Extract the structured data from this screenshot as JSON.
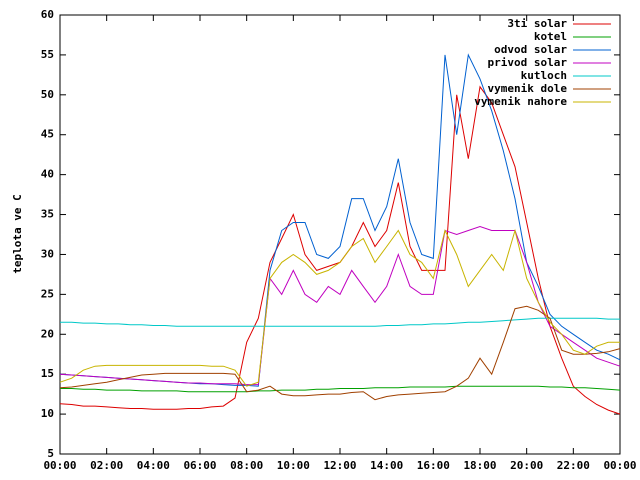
{
  "chart_data": {
    "type": "line",
    "ylabel": "teplota ve C",
    "x": [
      0,
      0.5,
      1,
      1.5,
      2,
      2.5,
      3,
      3.5,
      4,
      4.5,
      5,
      5.5,
      6,
      6.5,
      7,
      7.5,
      8,
      8.5,
      9,
      9.5,
      10,
      10.5,
      11,
      11.5,
      12,
      12.5,
      13,
      13.5,
      14,
      14.5,
      15,
      15.5,
      16,
      16.5,
      17,
      17.5,
      18,
      18.5,
      19,
      19.5,
      20,
      20.5,
      21,
      21.5,
      22,
      22.5,
      23,
      23.5,
      24
    ],
    "xlim": [
      0,
      24
    ],
    "xticks": [
      {
        "value": 0,
        "label": "00:00"
      },
      {
        "value": 2,
        "label": "02:00"
      },
      {
        "value": 4,
        "label": "04:00"
      },
      {
        "value": 6,
        "label": "06:00"
      },
      {
        "value": 8,
        "label": "08:00"
      },
      {
        "value": 10,
        "label": "10:00"
      },
      {
        "value": 12,
        "label": "12:00"
      },
      {
        "value": 14,
        "label": "14:00"
      },
      {
        "value": 16,
        "label": "16:00"
      },
      {
        "value": 18,
        "label": "18:00"
      },
      {
        "value": 20,
        "label": "20:00"
      },
      {
        "value": 22,
        "label": "22:00"
      },
      {
        "value": 24,
        "label": "00:00"
      }
    ],
    "ylim": [
      5,
      60
    ],
    "yticks": [
      5,
      10,
      15,
      20,
      25,
      30,
      35,
      40,
      45,
      50,
      55,
      60
    ],
    "series": [
      {
        "name": "3ti solar",
        "color": "#dd0000",
        "values": [
          11.3,
          11.2,
          11.0,
          11.0,
          10.9,
          10.8,
          10.7,
          10.7,
          10.6,
          10.6,
          10.6,
          10.7,
          10.7,
          10.9,
          11.0,
          12,
          19,
          22,
          29,
          32,
          35,
          30,
          28,
          28.5,
          29,
          31,
          34,
          31,
          33,
          39,
          31,
          28,
          28,
          28,
          50,
          42,
          51,
          49,
          45,
          41,
          34,
          27,
          21,
          17,
          13.5,
          12.2,
          11.2,
          10.5,
          10
        ]
      },
      {
        "name": "kotel",
        "color": "#00a000",
        "values": [
          13.2,
          13.2,
          13.1,
          13.1,
          13.0,
          13.0,
          13.0,
          12.9,
          12.9,
          12.9,
          12.9,
          12.8,
          12.8,
          12.8,
          12.8,
          12.8,
          12.8,
          12.9,
          12.9,
          13.0,
          13.0,
          13.0,
          13.1,
          13.1,
          13.2,
          13.2,
          13.2,
          13.3,
          13.3,
          13.3,
          13.4,
          13.4,
          13.4,
          13.4,
          13.5,
          13.5,
          13.5,
          13.5,
          13.5,
          13.5,
          13.5,
          13.5,
          13.4,
          13.4,
          13.3,
          13.3,
          13.2,
          13.1,
          13.0
        ]
      },
      {
        "name": "odvod solar",
        "color": "#0060d0",
        "values": [
          15.0,
          14.9,
          14.8,
          14.7,
          14.6,
          14.5,
          14.4,
          14.3,
          14.2,
          14.1,
          14.0,
          13.9,
          13.8,
          13.8,
          13.7,
          13.6,
          13.6,
          13.5,
          28,
          33,
          34,
          34,
          30,
          29.5,
          31,
          37,
          37,
          33,
          36,
          42,
          34,
          30,
          29.5,
          55,
          45,
          55,
          52,
          48,
          43,
          37,
          29,
          26,
          22.5,
          21,
          20,
          19,
          18,
          17.5,
          16.8
        ]
      },
      {
        "name": "privod solar",
        "color": "#c000c0",
        "values": [
          15.0,
          14.9,
          14.8,
          14.7,
          14.6,
          14.5,
          14.4,
          14.3,
          14.2,
          14.1,
          14.0,
          13.9,
          13.9,
          13.8,
          13.8,
          13.8,
          13.7,
          13.7,
          27,
          25,
          28,
          25,
          24,
          26,
          25,
          28,
          26,
          24,
          26,
          30,
          26,
          25,
          25,
          33,
          32.5,
          33,
          33.5,
          33,
          33,
          33,
          29,
          24,
          21,
          20,
          19,
          18,
          17,
          16.5,
          16
        ]
      },
      {
        "name": "kutloch",
        "color": "#00c8c8",
        "values": [
          21.5,
          21.5,
          21.4,
          21.4,
          21.3,
          21.3,
          21.2,
          21.2,
          21.1,
          21.1,
          21.0,
          21.0,
          21.0,
          21.0,
          21.0,
          21.0,
          21.0,
          21.0,
          21.0,
          21.0,
          21.0,
          21.0,
          21.0,
          21.0,
          21.0,
          21.0,
          21.0,
          21.0,
          21.1,
          21.1,
          21.2,
          21.2,
          21.3,
          21.3,
          21.4,
          21.5,
          21.5,
          21.6,
          21.7,
          21.8,
          21.9,
          22.0,
          22.0,
          22.0,
          22.0,
          22.0,
          22.0,
          21.9,
          21.9
        ]
      },
      {
        "name": "vymenik dole",
        "color": "#a04000",
        "values": [
          13.3,
          13.4,
          13.6,
          13.8,
          14.0,
          14.3,
          14.6,
          14.9,
          15.0,
          15.1,
          15.1,
          15.1,
          15.1,
          15.1,
          15.1,
          15.0,
          12.8,
          13,
          13.5,
          12.5,
          12.3,
          12.3,
          12.4,
          12.5,
          12.5,
          12.7,
          12.8,
          11.8,
          12.2,
          12.4,
          12.5,
          12.6,
          12.7,
          12.8,
          13.5,
          14.5,
          17,
          15,
          19,
          23.2,
          23.5,
          23,
          22,
          18,
          17.5,
          17.5,
          17.6,
          17.8,
          18.2
        ]
      },
      {
        "name": "vymenik nahore",
        "color": "#c8b400",
        "values": [
          14,
          14.5,
          15.5,
          16,
          16.1,
          16.1,
          16.1,
          16.1,
          16.1,
          16.1,
          16.1,
          16.1,
          16.1,
          16,
          16,
          15.5,
          13.5,
          14,
          27,
          29,
          30,
          29,
          27.5,
          28,
          29,
          31,
          32,
          29,
          31,
          33,
          30,
          29,
          27,
          33,
          30,
          26,
          28,
          30,
          28,
          33,
          27,
          24,
          21.5,
          20,
          18,
          17.5,
          18.5,
          19,
          19
        ]
      }
    ]
  }
}
